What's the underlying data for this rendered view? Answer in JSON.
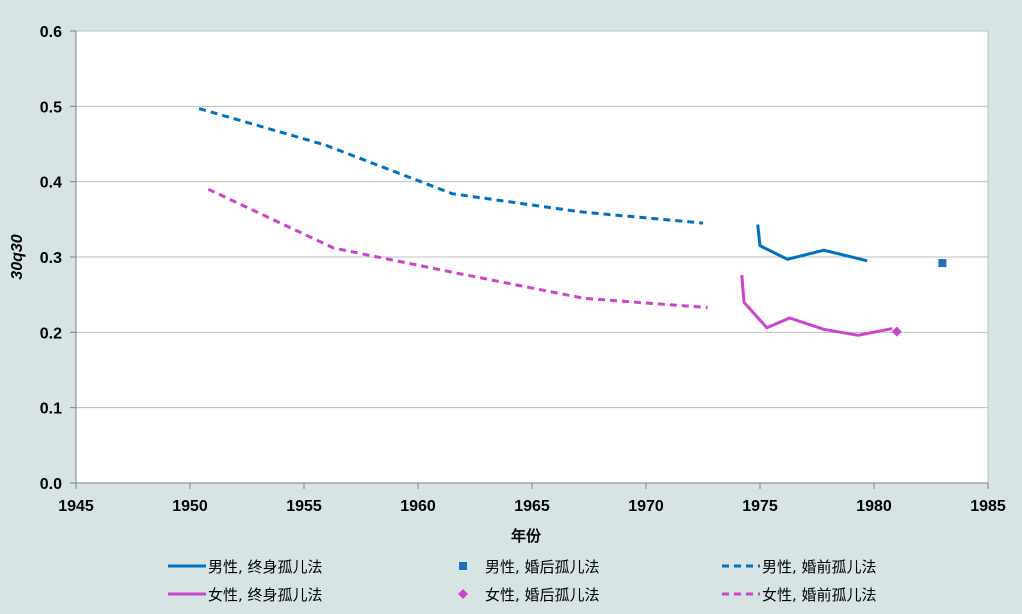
{
  "chart_data": {
    "type": "line",
    "xlabel": "年份",
    "ylabel": "30q30",
    "xlim": [
      1945,
      1985
    ],
    "ylim": [
      0,
      0.6
    ],
    "xticks": [
      "1945",
      "1950",
      "1955",
      "1960",
      "1965",
      "1970",
      "1975",
      "1980",
      "1985"
    ],
    "yticks": [
      "0.0",
      "0.1",
      "0.2",
      "0.3",
      "0.4",
      "0.5",
      "0.6"
    ],
    "grid": "horizontal",
    "legend_position": "bottom",
    "series": [
      {
        "name": "男性，终身孤儿法",
        "legend": "男性, 终身孤儿法",
        "style": "solid",
        "color": "#0070c0",
        "points": [
          [
            1974.9,
            0.343
          ],
          [
            1975.0,
            0.315
          ],
          [
            1976.2,
            0.297
          ],
          [
            1977.8,
            0.309
          ],
          [
            1979.7,
            0.295
          ]
        ]
      },
      {
        "name": "男性，婚后孤儿法",
        "legend": "男性, 婚后孤儿法",
        "style": "square",
        "color": "#1f6fbf",
        "points": [
          [
            1983.0,
            0.292
          ]
        ]
      },
      {
        "name": "男性，婚前孤儿法",
        "legend": "男性, 婚前孤儿法",
        "style": "dashed",
        "color": "#0070c0",
        "points": [
          [
            1950.4,
            0.497
          ],
          [
            1955.9,
            0.449
          ],
          [
            1961.5,
            0.384
          ],
          [
            1967.1,
            0.36
          ],
          [
            1972.5,
            0.345
          ]
        ]
      },
      {
        "name": "女性，终身孤儿法",
        "legend": "女性, 终身孤儿法",
        "style": "solid",
        "color": "#cc44cc",
        "points": [
          [
            1974.2,
            0.276
          ],
          [
            1974.3,
            0.24
          ],
          [
            1975.3,
            0.206
          ],
          [
            1976.3,
            0.219
          ],
          [
            1977.8,
            0.204
          ],
          [
            1979.3,
            0.196
          ],
          [
            1980.8,
            0.205
          ]
        ]
      },
      {
        "name": "女性，婚后孤儿法",
        "legend": "女性, 婚后孤儿法",
        "style": "diamond",
        "color": "#cc44cc",
        "points": [
          [
            1981.0,
            0.201
          ]
        ]
      },
      {
        "name": "女性，婚前孤儿法",
        "legend": "女性, 婚前孤儿法",
        "style": "dashed",
        "color": "#cc44cc",
        "points": [
          [
            1950.8,
            0.39
          ],
          [
            1956.3,
            0.312
          ],
          [
            1961.8,
            0.278
          ],
          [
            1967.3,
            0.245
          ],
          [
            1972.7,
            0.233
          ]
        ]
      }
    ]
  }
}
